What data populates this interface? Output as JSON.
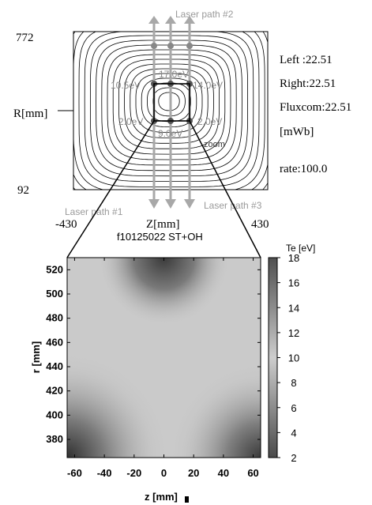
{
  "top_panel": {
    "r_max": "772",
    "r_min": "92",
    "z_min": "-430",
    "z_max": "430",
    "r_axis_label": "R[mm]",
    "z_axis_label": "Z[mm]",
    "laser_path_1": "Laser path #1",
    "laser_path_2": "Laser path #2",
    "laser_path_3": "Laser path #3",
    "zoom_label": "zoom",
    "point_labels": {
      "top": "17.0eV",
      "mid_left": "10.5eV",
      "mid_right": "14.0eV",
      "low_left": "2.0eV",
      "low_center": "9.0eV",
      "low_right": "2.0eV"
    },
    "info": {
      "left": "Left :22.51",
      "right": "Right:22.51",
      "fluxcom": "Fluxcom:22.51",
      "unit": "[mWb]",
      "rate": "rate:100.0"
    }
  },
  "bottom_panel": {
    "title": "f10125022 ST+OH",
    "colorbar_label": "Te [eV]",
    "xlabel": "z [mm]",
    "ylabel": "r [mm]",
    "x_ticks": [
      "-60",
      "-40",
      "-20",
      "0",
      "20",
      "40",
      "60"
    ],
    "y_ticks": [
      "520",
      "500",
      "480",
      "460",
      "440",
      "420",
      "400",
      "380"
    ],
    "cb_ticks": [
      "18",
      "16",
      "14",
      "12",
      "10",
      "8",
      "6",
      "4",
      "2"
    ]
  },
  "chart_data": {
    "type": "heatmap",
    "title": "f10125022 ST+OH",
    "xlabel": "z [mm]",
    "ylabel": "r [mm]",
    "xlim": [
      -65,
      65
    ],
    "ylim": [
      365,
      530
    ],
    "colorbar": {
      "label": "Te [eV]",
      "range": [
        2,
        18
      ]
    },
    "x_ticks": [
      -60,
      -40,
      -20,
      0,
      20,
      40,
      60
    ],
    "y_ticks": [
      380,
      400,
      420,
      440,
      460,
      480,
      500,
      520
    ],
    "cb_ticks": [
      2,
      4,
      6,
      8,
      10,
      12,
      14,
      16,
      18
    ],
    "colormap": "grayscale, dark = low, light = high"
  }
}
